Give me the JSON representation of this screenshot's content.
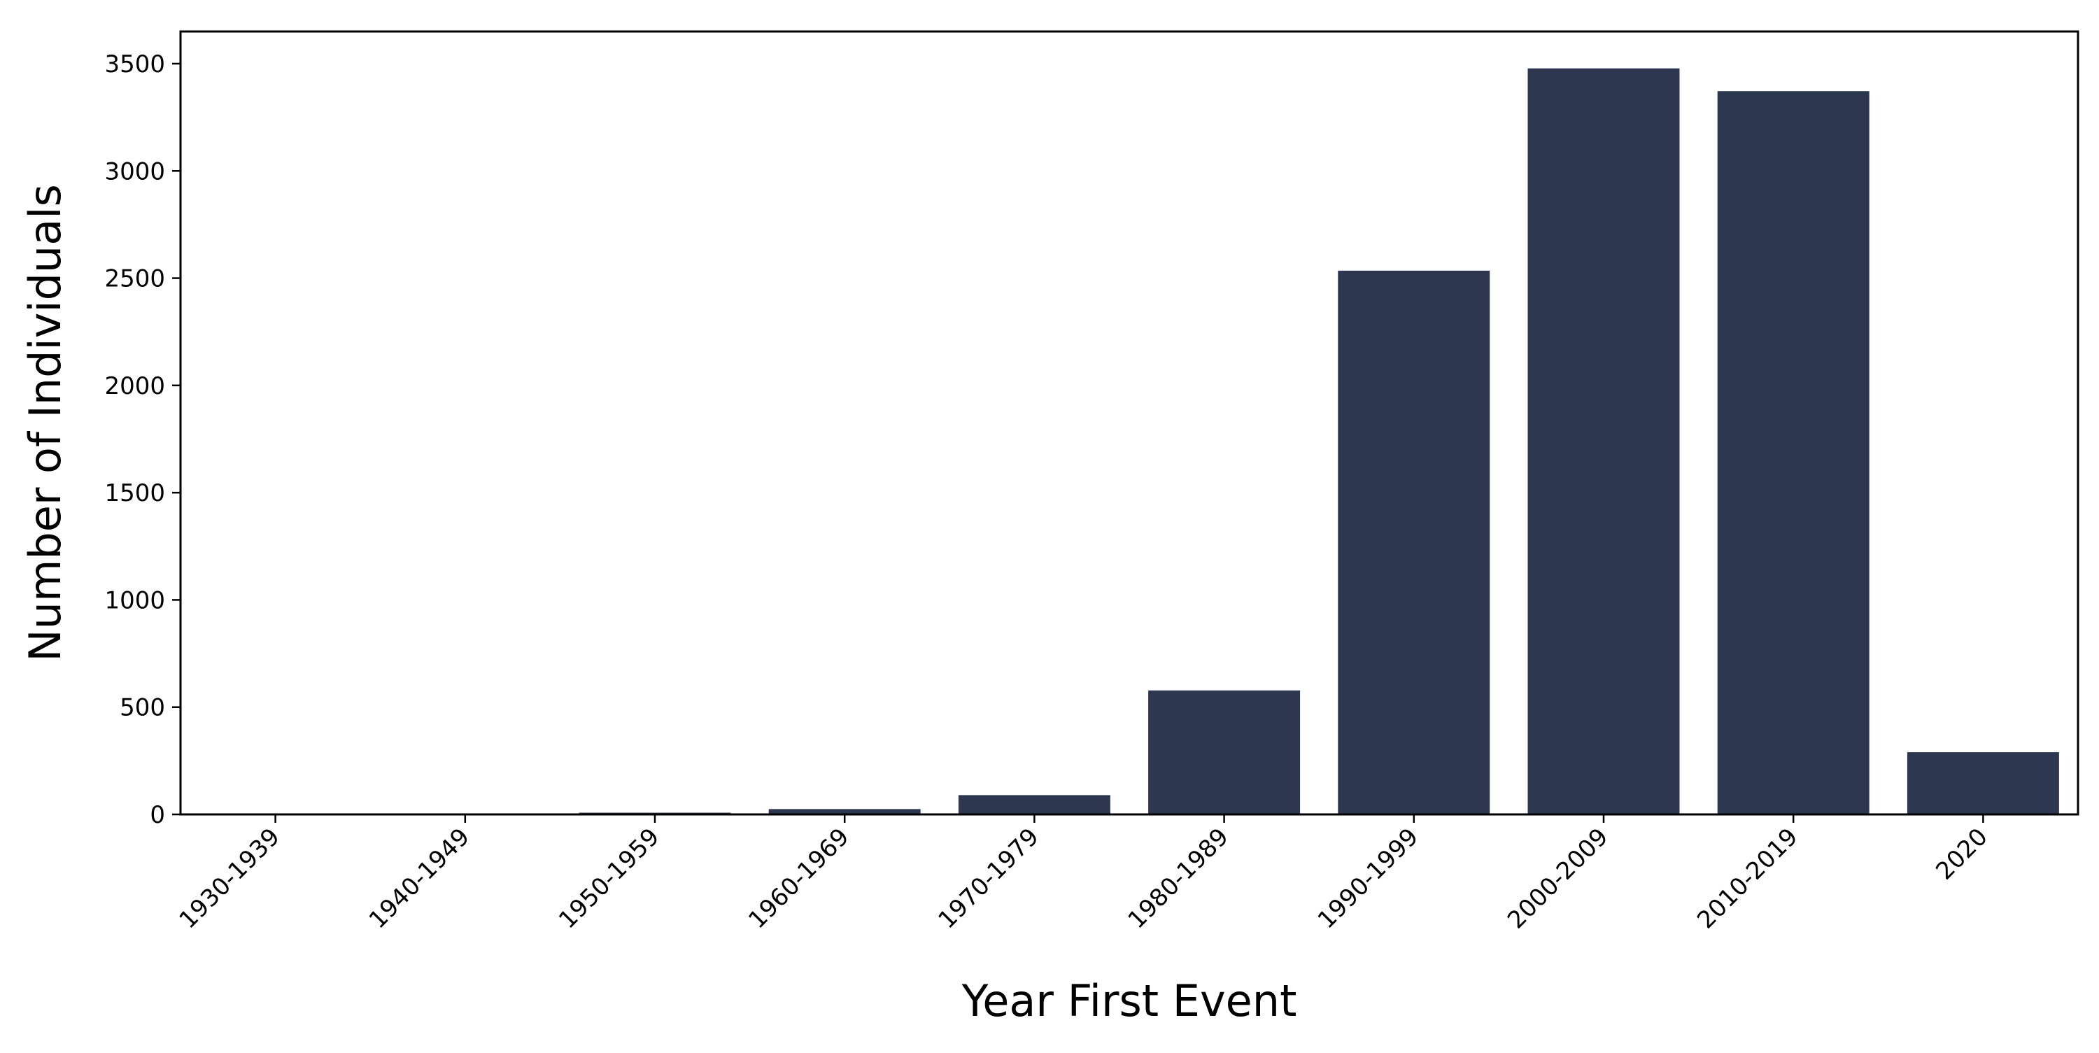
{
  "chart_data": {
    "type": "bar",
    "xlabel": "Year First Event",
    "ylabel": "Number of Individuals",
    "categories": [
      "1930-1939",
      "1940-1949",
      "1950-1959",
      "1960-1969",
      "1970-1979",
      "1980-1989",
      "1990-1999",
      "2000-2009",
      "2010-2019",
      "2020"
    ],
    "values": [
      2,
      2,
      8,
      25,
      90,
      578,
      2535,
      3478,
      3372,
      290
    ],
    "ylim": [
      0,
      3650
    ],
    "yticks": [
      0,
      500,
      1000,
      1500,
      2000,
      2500,
      3000,
      3500
    ],
    "grid": false,
    "legend": "none",
    "bar_color": "#2d3850"
  }
}
